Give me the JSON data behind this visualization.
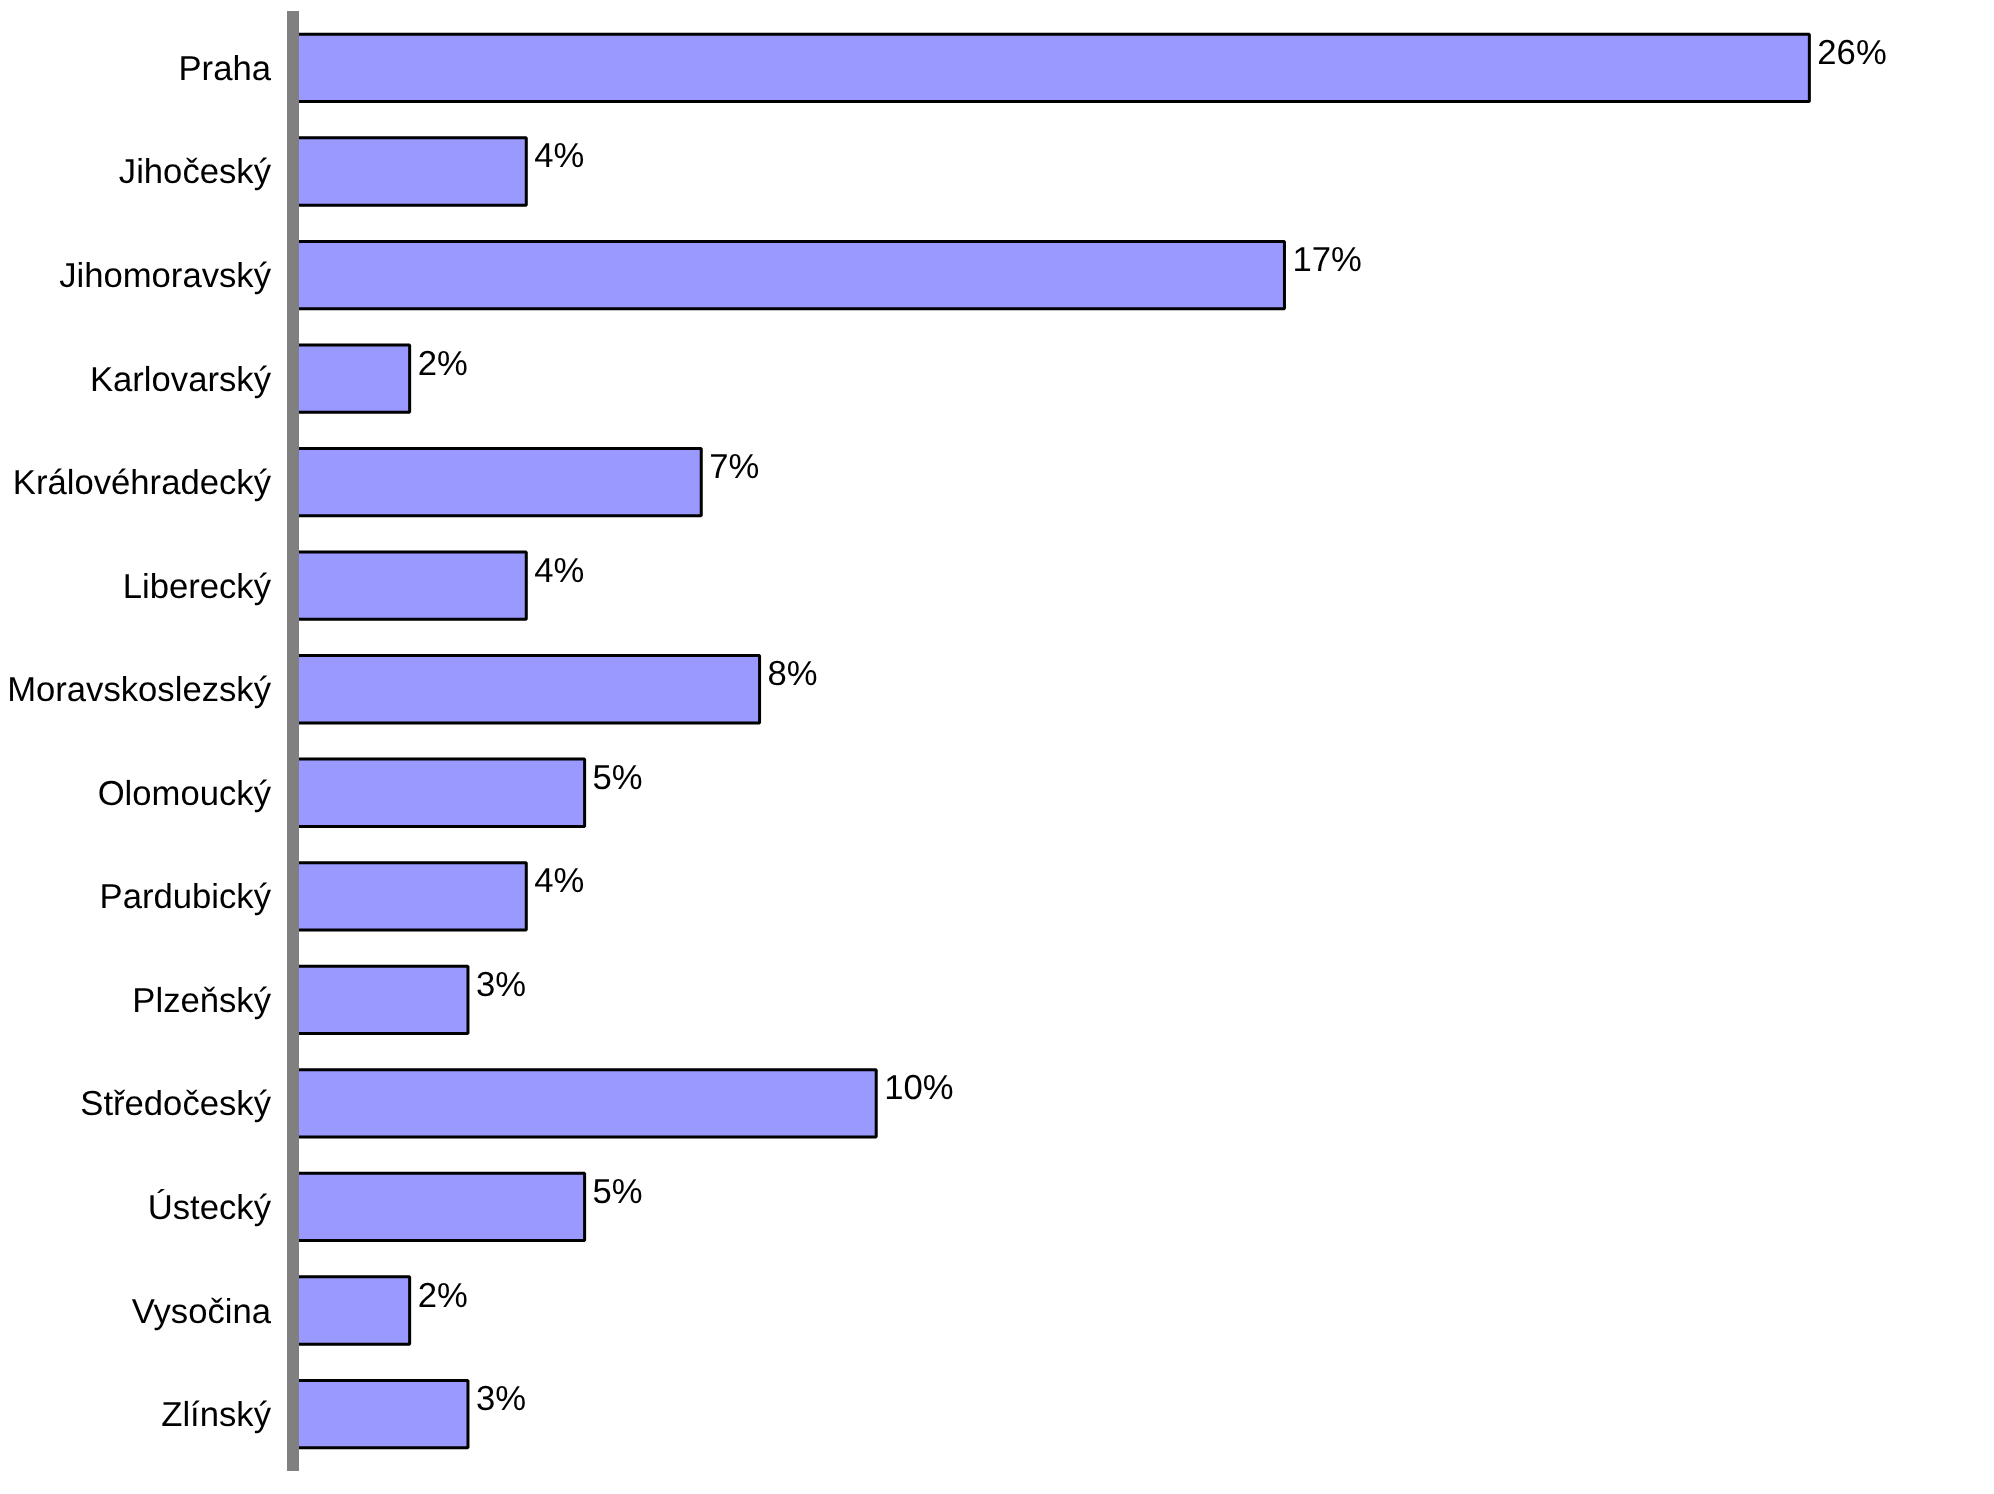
{
  "chart_data": {
    "type": "bar",
    "orientation": "horizontal",
    "categories": [
      "Praha",
      "Jihočeský",
      "Jihomoravský",
      "Karlovarský",
      "Královéhradecký",
      "Liberecký",
      "Moravskoslezský",
      "Olomoucký",
      "Pardubický",
      "Plzeňský",
      "Středočeský",
      "Ústecký",
      "Vysočina",
      "Zlínský"
    ],
    "values": [
      26,
      4,
      17,
      2,
      7,
      4,
      8,
      5,
      4,
      3,
      10,
      5,
      2,
      3
    ],
    "value_labels": [
      "26%",
      "4%",
      "17%",
      "2%",
      "7%",
      "4%",
      "8%",
      "5%",
      "4%",
      "3%",
      "10%",
      "5%",
      "2%",
      "3%"
    ],
    "color": "#9999ff",
    "grid": false,
    "tick_labels": "y"
  }
}
